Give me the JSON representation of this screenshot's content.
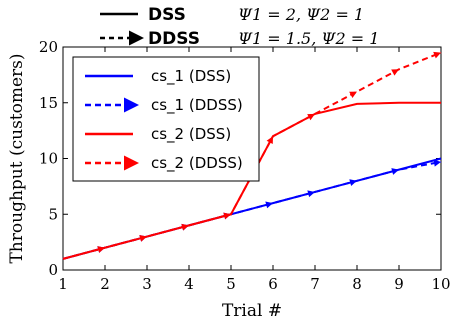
{
  "chart_data": {
    "type": "line",
    "xlabel": "Trial #",
    "ylabel": "Throughput (customers)",
    "xlim": [
      1,
      10
    ],
    "ylim": [
      0,
      20
    ],
    "xticks": [
      "1",
      "2",
      "3",
      "4",
      "5",
      "6",
      "7",
      "8",
      "9",
      "10"
    ],
    "yticks": [
      "0",
      "5",
      "10",
      "15",
      "20"
    ],
    "grid": false,
    "legend_placement": "upper-left",
    "x": [
      1,
      2,
      3,
      4,
      5,
      6,
      7,
      8,
      9,
      10
    ],
    "series": [
      {
        "name": "cs_1 (DSS)",
        "color": "#0000ff",
        "style": "solid",
        "values": [
          1,
          2,
          3,
          4,
          5,
          6,
          7,
          8,
          9,
          10
        ]
      },
      {
        "name": "cs_1 (DDSS)",
        "color": "#0000ff",
        "style": "dashed-arrow",
        "values": [
          1,
          2,
          3,
          4,
          5,
          6,
          7,
          8,
          9,
          9.7
        ]
      },
      {
        "name": "cs_2 (DSS)",
        "color": "#ff0000",
        "style": "solid",
        "values": [
          1,
          2,
          3,
          4,
          5,
          12,
          14,
          14.9,
          15,
          15
        ]
      },
      {
        "name": "cs_2 (DDSS)",
        "color": "#ff0000",
        "style": "dashed-arrow",
        "values": [
          1,
          2,
          3,
          4,
          5,
          12,
          14,
          16,
          18,
          19.5
        ]
      }
    ],
    "top_legend": [
      {
        "label": "DSS",
        "style": "solid",
        "params": "Ψ1 = 2,    Ψ2 = 1"
      },
      {
        "label": "DDSS",
        "style": "dashed-arrow",
        "params": "Ψ1 = 1.5,    Ψ2 = 1"
      }
    ]
  }
}
